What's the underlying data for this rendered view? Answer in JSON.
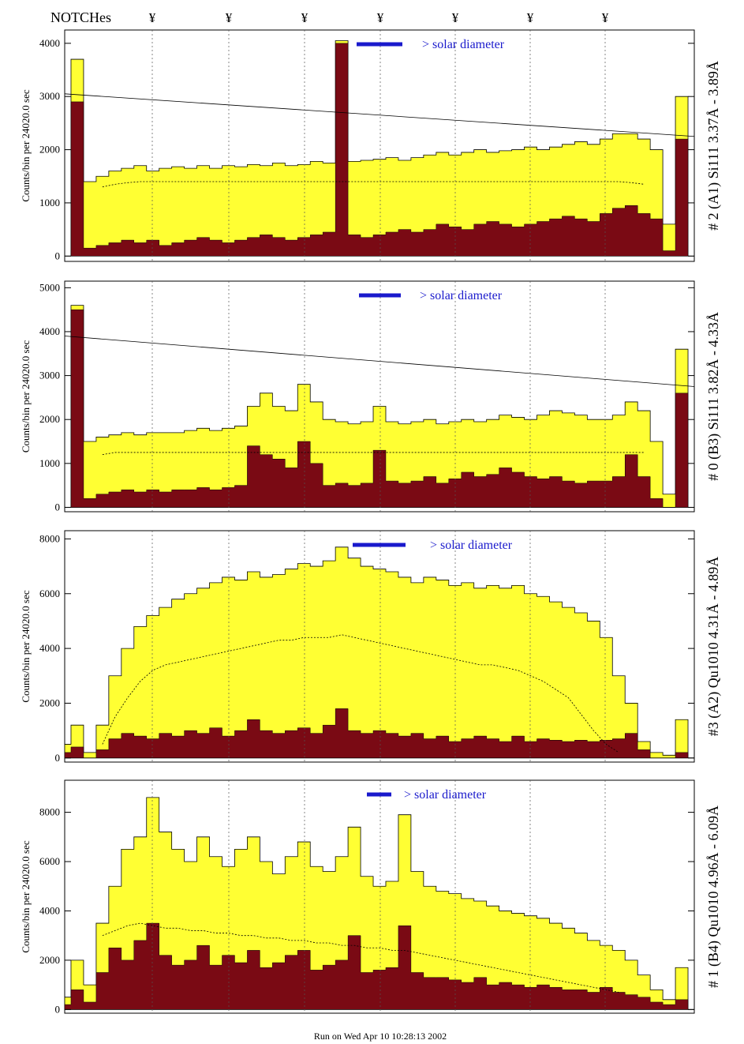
{
  "header": {
    "notches_label": "NOTCHes",
    "notch_marker": "¥"
  },
  "footer": {
    "run_text": "Run on Wed Apr 10 10:28:13 2002"
  },
  "colors": {
    "fill_total": "#ffff33",
    "fill_lower": "#7a0a14",
    "annotation_blue": "#1a1acc",
    "background": "#ffffff"
  },
  "chart_data": [
    {
      "type": "area",
      "ylabel": "Counts/bin per  24020.0 sec",
      "right_label": "# 2 (A1) Si111  3.37Å - 3.89Å",
      "annotation": "> solar diameter",
      "yticks": [
        0,
        1000,
        2000,
        3000,
        4000
      ],
      "ylim": [
        -100,
        4250
      ],
      "x": [
        0,
        2,
        4,
        6,
        8,
        10,
        12,
        14,
        16,
        18,
        20,
        22,
        24,
        26,
        28,
        30,
        32,
        34,
        36,
        38,
        40,
        42,
        44,
        46,
        48,
        50,
        52,
        54,
        56,
        58,
        60,
        62,
        64,
        66,
        68,
        70,
        72,
        74,
        76,
        78,
        80,
        82,
        84,
        86,
        88,
        90,
        92,
        94,
        96,
        98,
        100
      ],
      "series": [
        {
          "values": [
            0,
            3700,
            1400,
            1500,
            1600,
            1650,
            1700,
            1600,
            1650,
            1680,
            1650,
            1700,
            1650,
            1700,
            1680,
            1720,
            1700,
            1750,
            1700,
            1720,
            1780,
            1750,
            4050,
            1780,
            1800,
            1820,
            1850,
            1800,
            1850,
            1900,
            1950,
            1900,
            1950,
            2000,
            1950,
            1980,
            2000,
            2050,
            2000,
            2050,
            2100,
            2150,
            2100,
            2200,
            2300,
            2300,
            2200,
            2000,
            600,
            3000,
            0
          ]
        },
        {
          "values": [
            0,
            2900,
            150,
            200,
            250,
            300,
            250,
            300,
            200,
            250,
            300,
            350,
            300,
            250,
            300,
            350,
            400,
            350,
            300,
            350,
            400,
            450,
            4000,
            400,
            350,
            400,
            450,
            500,
            450,
            500,
            600,
            550,
            500,
            600,
            650,
            600,
            550,
            600,
            650,
            700,
            750,
            700,
            650,
            800,
            900,
            950,
            800,
            700,
            100,
            2200,
            0
          ]
        },
        {
          "values": [
            null,
            null,
            null,
            1300,
            1350,
            1380,
            1400,
            1400,
            1400,
            1400,
            1400,
            1400,
            1400,
            1400,
            1400,
            1400,
            1400,
            1400,
            1400,
            1400,
            1400,
            1400,
            1400,
            1400,
            1400,
            1400,
            1400,
            1400,
            1400,
            1400,
            1400,
            1400,
            1400,
            1400,
            1400,
            1400,
            1400,
            1400,
            1400,
            1400,
            1400,
            1400,
            1400,
            1400,
            1400,
            1380,
            1350,
            null,
            null,
            null,
            null
          ]
        }
      ],
      "line": [
        [
          0,
          3050
        ],
        [
          100,
          2250
        ]
      ]
    },
    {
      "type": "area",
      "ylabel": "Counts/bin per  24020.0 sec",
      "right_label": "# 0 (B3) Si111  3.82Å - 4.33Å",
      "annotation": "> solar diameter",
      "yticks": [
        0,
        1000,
        2000,
        3000,
        4000,
        5000
      ],
      "ylim": [
        -100,
        5150
      ],
      "x": [
        0,
        2,
        4,
        6,
        8,
        10,
        12,
        14,
        16,
        18,
        20,
        22,
        24,
        26,
        28,
        30,
        32,
        34,
        36,
        38,
        40,
        42,
        44,
        46,
        48,
        50,
        52,
        54,
        56,
        58,
        60,
        62,
        64,
        66,
        68,
        70,
        72,
        74,
        76,
        78,
        80,
        82,
        84,
        86,
        88,
        90,
        92,
        94,
        96,
        98,
        100
      ],
      "series": [
        {
          "values": [
            0,
            4600,
            1500,
            1600,
            1650,
            1700,
            1650,
            1700,
            1700,
            1700,
            1750,
            1800,
            1750,
            1800,
            1850,
            2300,
            2600,
            2300,
            2200,
            2800,
            2400,
            2000,
            1950,
            1900,
            1950,
            2300,
            1950,
            1900,
            1950,
            2000,
            1900,
            1950,
            2000,
            1950,
            2000,
            2100,
            2050,
            2000,
            2100,
            2200,
            2150,
            2100,
            2000,
            2000,
            2100,
            2400,
            2200,
            1500,
            300,
            3600,
            0
          ]
        },
        {
          "values": [
            0,
            4500,
            200,
            300,
            350,
            400,
            350,
            400,
            350,
            400,
            400,
            450,
            400,
            450,
            500,
            1400,
            1200,
            1100,
            900,
            1500,
            1000,
            500,
            550,
            500,
            550,
            1300,
            600,
            550,
            600,
            700,
            550,
            650,
            800,
            700,
            750,
            900,
            800,
            700,
            650,
            700,
            600,
            550,
            600,
            600,
            700,
            1200,
            700,
            200,
            0,
            2600,
            0
          ]
        },
        {
          "values": [
            null,
            null,
            null,
            1200,
            1250,
            1250,
            1250,
            1250,
            1250,
            1250,
            1250,
            1250,
            1250,
            1250,
            1250,
            1250,
            1250,
            1250,
            1250,
            1250,
            1250,
            1250,
            1250,
            1250,
            1250,
            1250,
            1250,
            1250,
            1250,
            1250,
            1250,
            1250,
            1250,
            1250,
            1250,
            1250,
            1250,
            1250,
            1250,
            1250,
            1250,
            1250,
            1250,
            1250,
            1250,
            1250,
            1250,
            null,
            null,
            null,
            null
          ]
        }
      ],
      "line": [
        [
          0,
          3900
        ],
        [
          100,
          2750
        ]
      ]
    },
    {
      "type": "area",
      "ylabel": "Counts/bin per  24020.0 sec",
      "right_label": "#3 (A2) Qu1010  4.31Å - 4.89Å",
      "annotation": "> solar diameter",
      "yticks": [
        0,
        2000,
        4000,
        6000,
        8000
      ],
      "ylim": [
        -150,
        8300
      ],
      "x": [
        0,
        2,
        4,
        6,
        8,
        10,
        12,
        14,
        16,
        18,
        20,
        22,
        24,
        26,
        28,
        30,
        32,
        34,
        36,
        38,
        40,
        42,
        44,
        46,
        48,
        50,
        52,
        54,
        56,
        58,
        60,
        62,
        64,
        66,
        68,
        70,
        72,
        74,
        76,
        78,
        80,
        82,
        84,
        86,
        88,
        90,
        92,
        94,
        96,
        98,
        100
      ],
      "series": [
        {
          "values": [
            500,
            1200,
            200,
            1200,
            3000,
            4000,
            4800,
            5200,
            5500,
            5800,
            6000,
            6200,
            6400,
            6600,
            6500,
            6800,
            6600,
            6700,
            6900,
            7100,
            7000,
            7200,
            7700,
            7300,
            7000,
            6900,
            6800,
            6600,
            6400,
            6600,
            6500,
            6300,
            6400,
            6200,
            6300,
            6200,
            6300,
            6000,
            5900,
            5700,
            5500,
            5300,
            5000,
            4400,
            3000,
            2000,
            600,
            200,
            100,
            1400,
            0
          ]
        },
        {
          "values": [
            200,
            400,
            0,
            300,
            700,
            900,
            800,
            700,
            900,
            800,
            1000,
            900,
            1100,
            800,
            1000,
            1400,
            1000,
            900,
            1000,
            1100,
            900,
            1200,
            1800,
            1000,
            900,
            1000,
            900,
            800,
            900,
            700,
            800,
            600,
            700,
            800,
            700,
            600,
            800,
            600,
            700,
            650,
            600,
            650,
            600,
            650,
            700,
            900,
            300,
            0,
            0,
            200,
            0
          ]
        },
        {
          "values": [
            null,
            null,
            null,
            500,
            1500,
            2200,
            2800,
            3200,
            3400,
            3500,
            3600,
            3700,
            3800,
            3900,
            4000,
            4100,
            4200,
            4300,
            4300,
            4400,
            4400,
            4400,
            4500,
            4400,
            4300,
            4200,
            4100,
            4000,
            3900,
            3800,
            3700,
            3600,
            3500,
            3400,
            3400,
            3300,
            3200,
            3000,
            2800,
            2500,
            2200,
            1600,
            1000,
            500,
            200,
            null,
            null,
            null,
            null,
            null,
            null
          ]
        }
      ],
      "line": []
    },
    {
      "type": "area",
      "ylabel": "Counts/bin per  24020.0 sec",
      "right_label": "# 1 (B4) Qu1010 4.96Å - 6.09Å",
      "annotation": "> solar diameter",
      "yticks": [
        0,
        2000,
        4000,
        6000,
        8000
      ],
      "ylim": [
        -150,
        9300
      ],
      "x": [
        0,
        2,
        4,
        6,
        8,
        10,
        12,
        14,
        16,
        18,
        20,
        22,
        24,
        26,
        28,
        30,
        32,
        34,
        36,
        38,
        40,
        42,
        44,
        46,
        48,
        50,
        52,
        54,
        56,
        58,
        60,
        62,
        64,
        66,
        68,
        70,
        72,
        74,
        76,
        78,
        80,
        82,
        84,
        86,
        88,
        90,
        92,
        94,
        96,
        98,
        100
      ],
      "series": [
        {
          "values": [
            500,
            2000,
            1000,
            3500,
            5000,
            6500,
            7000,
            8600,
            7200,
            6500,
            6000,
            7000,
            6200,
            5800,
            6500,
            7000,
            6000,
            5500,
            6200,
            6800,
            5800,
            5600,
            6200,
            7400,
            5400,
            5000,
            5200,
            7900,
            5600,
            5000,
            4800,
            4700,
            4500,
            4400,
            4200,
            4000,
            3900,
            3800,
            3700,
            3500,
            3300,
            3100,
            2800,
            2600,
            2400,
            2000,
            1400,
            800,
            400,
            1700,
            0
          ]
        },
        {
          "values": [
            200,
            800,
            300,
            1500,
            2500,
            2000,
            2800,
            3500,
            2200,
            1800,
            2000,
            2600,
            1800,
            2200,
            1900,
            2400,
            1700,
            1900,
            2200,
            2400,
            1600,
            1800,
            2000,
            3000,
            1500,
            1600,
            1700,
            3400,
            1500,
            1300,
            1300,
            1200,
            1100,
            1300,
            1000,
            1100,
            1000,
            900,
            1000,
            900,
            800,
            800,
            700,
            900,
            700,
            600,
            500,
            300,
            200,
            400,
            0
          ]
        },
        {
          "values": [
            null,
            null,
            null,
            3000,
            3200,
            3400,
            3500,
            3400,
            3300,
            3300,
            3200,
            3200,
            3100,
            3100,
            3000,
            3000,
            2900,
            2900,
            2800,
            2800,
            2700,
            2700,
            2600,
            2600,
            2500,
            2500,
            2400,
            2400,
            2300,
            2200,
            2100,
            2000,
            1900,
            1800,
            1700,
            1600,
            1500,
            1400,
            1300,
            1200,
            1100,
            1000,
            900,
            800,
            700,
            null,
            null,
            null,
            null,
            null,
            null
          ]
        }
      ],
      "line": []
    }
  ]
}
